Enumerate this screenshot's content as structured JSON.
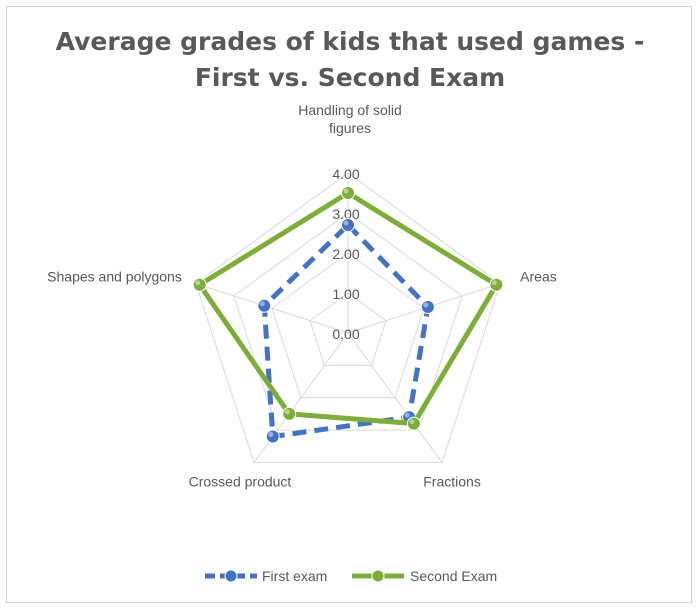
{
  "chart_data": {
    "type": "radar",
    "title_line1": "Average grades of kids that used games -",
    "title_line2": "First vs. Second Exam",
    "categories": [
      "Handling of solid figures",
      "Areas",
      "Fractions",
      "Crossed product",
      "Shapes and polygons"
    ],
    "category_label_lines": [
      [
        "Handling of solid",
        "figures"
      ],
      [
        "Areas"
      ],
      [
        "Fractions"
      ],
      [
        "Crossed product"
      ],
      [
        "Shapes and polygons"
      ]
    ],
    "rlim": [
      0,
      4
    ],
    "ticks": [
      "0.00",
      "1.00",
      "2.00",
      "3.00",
      "4.00"
    ],
    "tick_values": [
      0,
      1,
      2,
      3,
      4
    ],
    "grid": true,
    "legend_position": "bottom",
    "series": [
      {
        "name": "First exam",
        "values": [
          2.7,
          2.1,
          2.6,
          3.2,
          2.2
        ],
        "color": "#4472C4",
        "style": "dashed"
      },
      {
        "name": "Second Exam",
        "values": [
          3.5,
          3.9,
          2.8,
          2.5,
          3.9
        ],
        "color": "#7EAE3A",
        "style": "solid"
      }
    ]
  }
}
